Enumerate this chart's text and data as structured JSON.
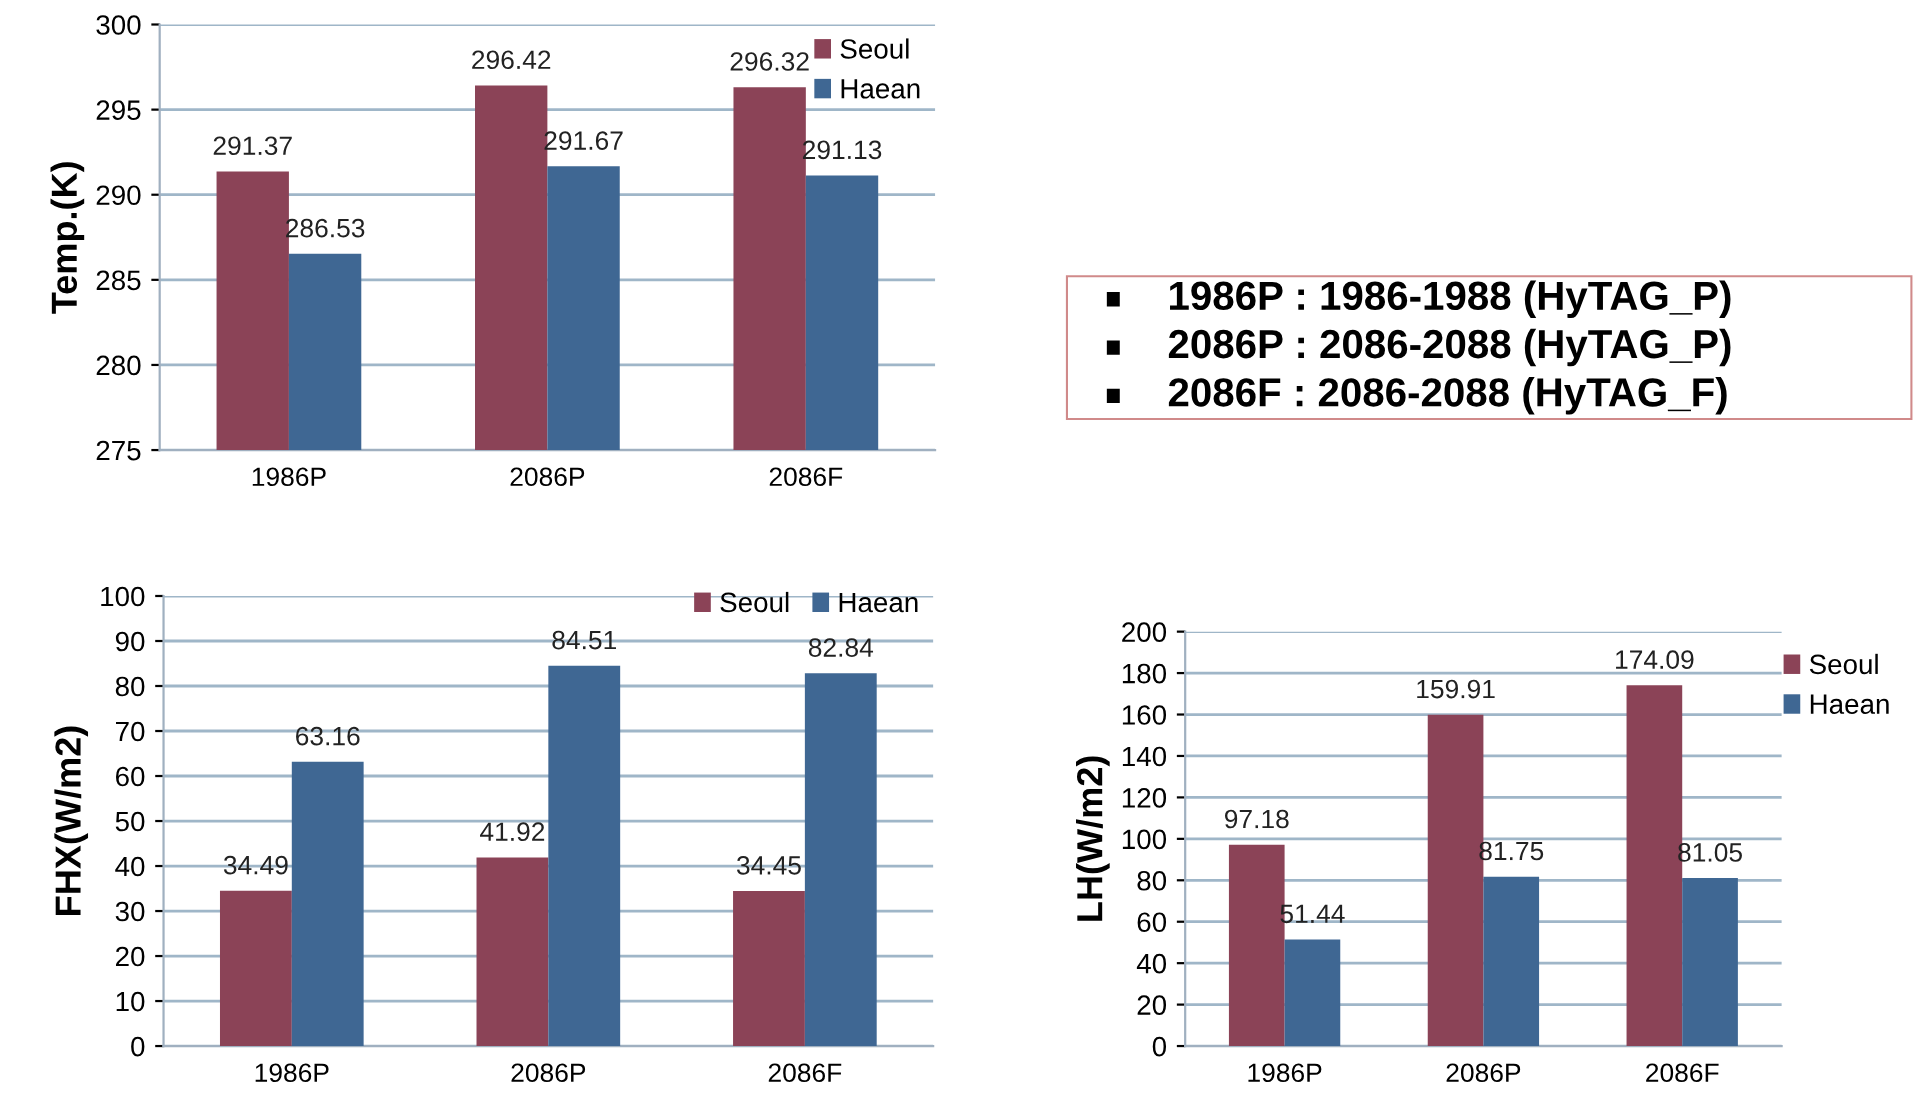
{
  "chart_data": [
    {
      "type": "bar",
      "ylabel": "Temp.(K)",
      "categories": [
        "1986P",
        "2086P",
        "2086F"
      ],
      "series": [
        {
          "name": "Seoul",
          "color": "#8b4357",
          "values": [
            291.37,
            296.42,
            296.32
          ]
        },
        {
          "name": "Haean",
          "color": "#3f6793",
          "values": [
            286.53,
            291.67,
            291.13
          ]
        }
      ],
      "ylim": [
        275,
        300
      ],
      "yticks": [
        275,
        280,
        285,
        290,
        295,
        300
      ],
      "grid": "y",
      "legend": "top right",
      "data_labels": true
    },
    {
      "type": "bar",
      "ylabel": "FHX(W/m2)",
      "categories": [
        "1986P",
        "2086P",
        "2086F"
      ],
      "series": [
        {
          "name": "Seoul",
          "color": "#8b4357",
          "values": [
            34.49,
            41.92,
            34.45
          ]
        },
        {
          "name": "Haean",
          "color": "#3f6793",
          "values": [
            63.16,
            84.51,
            82.84
          ]
        }
      ],
      "ylim": [
        0,
        100
      ],
      "yticks": [
        0,
        10,
        20,
        30,
        40,
        50,
        60,
        70,
        80,
        90,
        100
      ],
      "grid": "y",
      "legend": "top",
      "data_labels": true
    },
    {
      "type": "bar",
      "ylabel": "LH(W/m2)",
      "categories": [
        "1986P",
        "2086P",
        "2086F"
      ],
      "series": [
        {
          "name": "Seoul",
          "color": "#8b4357",
          "values": [
            97.18,
            159.91,
            174.09
          ]
        },
        {
          "name": "Haean",
          "color": "#3f6793",
          "values": [
            51.44,
            81.75,
            81.05
          ]
        }
      ],
      "ylim": [
        0,
        200
      ],
      "yticks": [
        0,
        20,
        40,
        60,
        80,
        100,
        120,
        140,
        160,
        180,
        200
      ],
      "grid": "y",
      "legend": "right",
      "data_labels": true
    },
    {
      "type": "other",
      "annotations": [
        "1986P : 1986-1988 (HyTAG_P)",
        "2086P : 2086-2088 (HyTAG_P)",
        "2086F : 2086-2088 (HyTAG_F)"
      ]
    }
  ]
}
